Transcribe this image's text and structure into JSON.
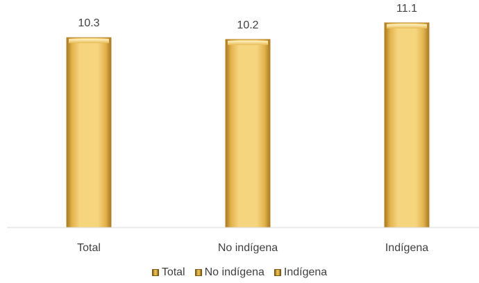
{
  "chart_data": {
    "type": "bar",
    "categories": [
      "Total",
      "No indígena",
      "Indígena"
    ],
    "values": [
      10.3,
      10.2,
      11.1
    ],
    "value_labels": [
      "10.3",
      "10.2",
      "11.1"
    ],
    "title": "",
    "xlabel": "",
    "ylabel": "",
    "ylim": [
      0,
      12
    ],
    "grid": false,
    "legend": {
      "position": "bottom",
      "entries": [
        "Total",
        "No indígena",
        "Indígena"
      ]
    },
    "colors": {
      "bar": "#f3cd6b",
      "bar_edge": "#b8862a",
      "bar_highlight": "#fff1bf",
      "axis": "#d9d9d9",
      "text": "#404040"
    }
  }
}
